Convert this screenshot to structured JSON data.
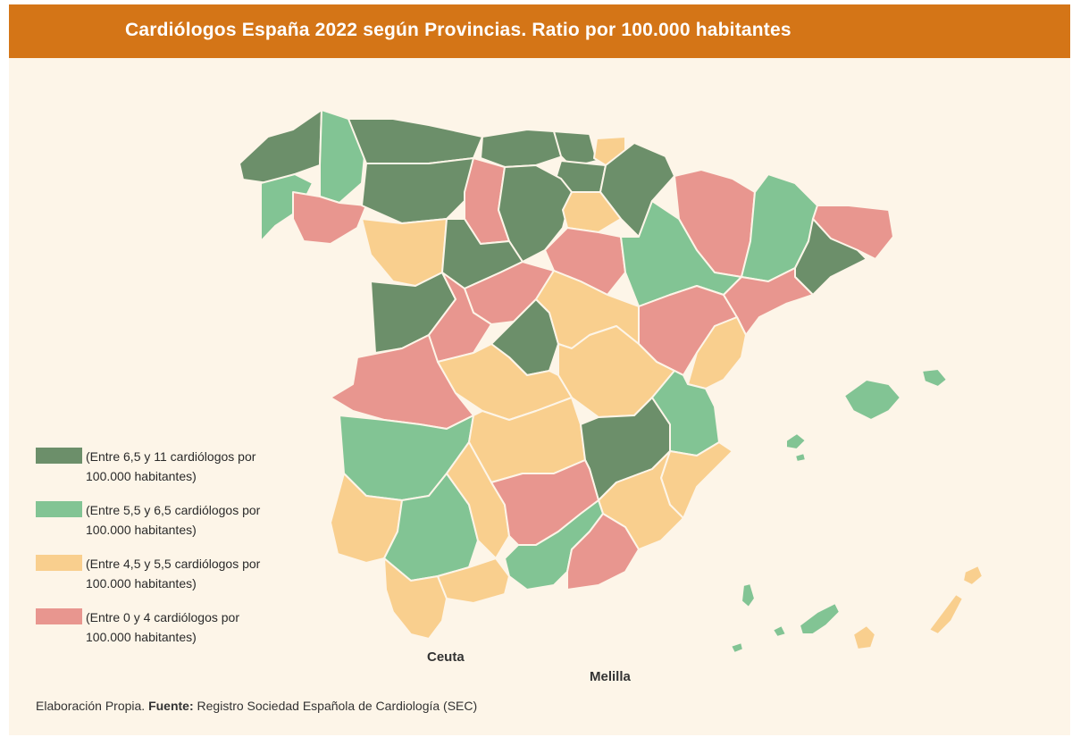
{
  "title": "Cardiólogos España 2022 según Provincias. Ratio por 100.000 habitantes",
  "colors": {
    "header": "#d47517",
    "background": "#fdf5e8",
    "high": "#6c8f6a",
    "mid_high": "#82c494",
    "mid_low": "#f9cf8e",
    "low": "#e8968f"
  },
  "legend": [
    {
      "key": "high",
      "line1": "(Entre 6,5 y 11 cardiólogos por",
      "line2": "100.000 habitantes)"
    },
    {
      "key": "mid_high",
      "line1": "(Entre 5,5 y 6,5 cardiólogos por",
      "line2": "100.000 habitantes)"
    },
    {
      "key": "mid_low",
      "line1": "(Entre 4,5 y 5,5 cardiólogos por",
      "line2": "100.000 habitantes)"
    },
    {
      "key": "low",
      "line1": "(Entre 0 y 4 cardiólogos por",
      "line2": "100.000 habitantes)"
    }
  ],
  "cities": {
    "ceuta": "Ceuta",
    "melilla": "Melilla"
  },
  "source": {
    "prefix": "Elaboración Propia.",
    "label": "Fuente:",
    "text": "Registro Sociedad Española de Cardiología (SEC)"
  }
}
